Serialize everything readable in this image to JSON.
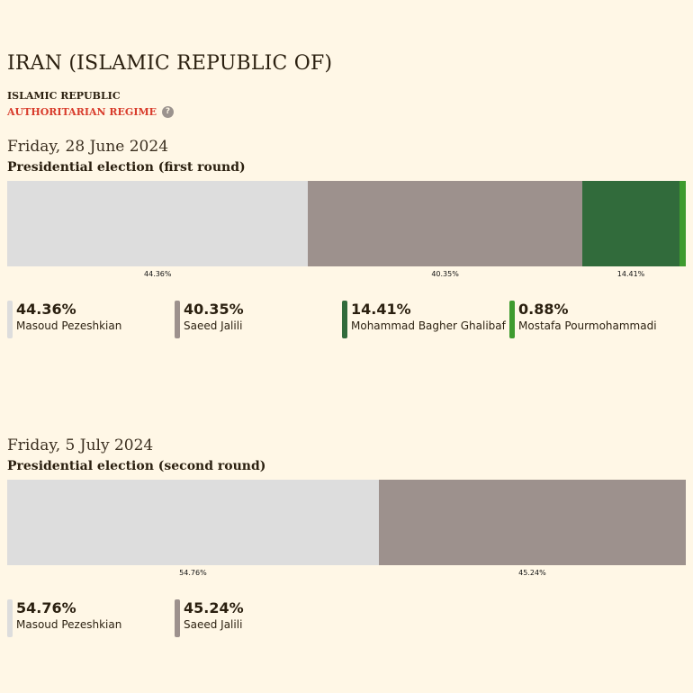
{
  "country": {
    "title": "IRAN (ISLAMIC REPUBLIC OF)",
    "regime_type": "ISLAMIC REPUBLIC",
    "regime_class": "AUTHORITARIAN REGIME",
    "help_icon": "question-mark-icon",
    "help_glyph": "?"
  },
  "colors": {
    "background": "#fff7e6",
    "accent_red": "#d83b2b"
  },
  "chart_data": [
    {
      "type": "bar",
      "orientation": "horizontal-stacked",
      "date": "Friday, 28 June 2024",
      "title": "Presidential election (first round)",
      "series": [
        {
          "name": "Masoud Pezeshkian",
          "value": 44.36,
          "label": "44.36%",
          "color": "#dddddd"
        },
        {
          "name": "Saeed Jalili",
          "value": 40.35,
          "label": "40.35%",
          "color": "#9d918d"
        },
        {
          "name": "Mohammad Bagher Ghalibaf",
          "value": 14.41,
          "label": "14.41%",
          "color": "#316b3b"
        },
        {
          "name": "Mostafa Pourmohammadi",
          "value": 0.88,
          "label": "0.88%",
          "color": "#3e9b2e"
        }
      ],
      "bar_labels": [
        "44.36%",
        "40.35%",
        "14.41%",
        ""
      ]
    },
    {
      "type": "bar",
      "orientation": "horizontal-stacked",
      "date": "Friday, 5 July 2024",
      "title": "Presidential election (second round)",
      "series": [
        {
          "name": "Masoud Pezeshkian",
          "value": 54.76,
          "label": "54.76%",
          "color": "#dddddd"
        },
        {
          "name": "Saeed Jalili",
          "value": 45.24,
          "label": "45.24%",
          "color": "#9d918d"
        }
      ],
      "bar_labels": [
        "54.76%",
        "45.24%"
      ]
    }
  ]
}
